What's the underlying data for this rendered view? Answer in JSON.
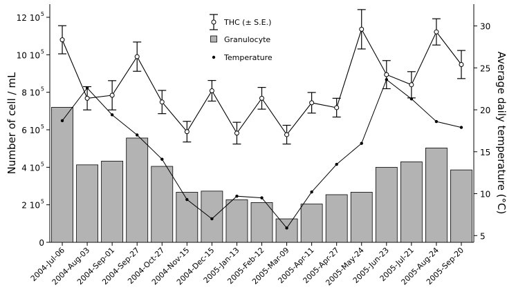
{
  "chart_data": {
    "type": "bar",
    "categories": [
      "2004-Jul-06",
      "2004-Aug-03",
      "2004-Sep-01",
      "2004-Sep-27",
      "2004-Oct-27",
      "2004-Nov-15",
      "2004-Dec-15",
      "2005-Jan-13",
      "2005-Feb-12",
      "2005-Mar-09",
      "2005-Apr-11",
      "2005-Apr-27",
      "2005-May-24",
      "2005-Jun-23",
      "2005-Jul-21",
      "2005-Aug-24",
      "2005-Sep-20"
    ],
    "ylabel": "Number of cell / mL",
    "y2label": "Average daily temperature (°C)",
    "ylim": [
      0,
      1270000
    ],
    "y2lim": [
      4.2,
      32.6
    ],
    "y_ticks": [
      {
        "value": 0,
        "mantissa": "0",
        "exp": ""
      },
      {
        "value": 200000,
        "mantissa": "2 10",
        "exp": "5"
      },
      {
        "value": 400000,
        "mantissa": "4 10",
        "exp": "5"
      },
      {
        "value": 600000,
        "mantissa": "6 10",
        "exp": "5"
      },
      {
        "value": 800000,
        "mantissa": "8 10",
        "exp": "5"
      },
      {
        "value": 1000000,
        "mantissa": "10 10",
        "exp": "5"
      },
      {
        "value": 1200000,
        "mantissa": "12 10",
        "exp": "5"
      }
    ],
    "y2_ticks": [
      5,
      10,
      15,
      20,
      25,
      30
    ],
    "series": [
      {
        "name": "Granulocyte",
        "kind": "bar",
        "color": "#b3b3b3",
        "values": [
          720000,
          413000,
          433000,
          556000,
          405000,
          267000,
          273000,
          227000,
          212000,
          125000,
          204000,
          254000,
          267000,
          400000,
          429000,
          503000,
          386000
        ]
      },
      {
        "name": "THC (± S.E.)",
        "kind": "line-errorbar",
        "color": "#000000",
        "values": [
          1080000,
          768000,
          784000,
          990000,
          748000,
          590000,
          808000,
          582000,
          768000,
          574000,
          744000,
          718000,
          1136000,
          894000,
          840000,
          1122000,
          948000
        ],
        "errors": [
          75000,
          62000,
          78000,
          78000,
          62000,
          55000,
          55000,
          58000,
          58000,
          50000,
          55000,
          50000,
          105000,
          75000,
          70000,
          70000,
          75000
        ]
      },
      {
        "name": "Temperature",
        "kind": "line-axis2",
        "color": "#000000",
        "values": [
          18.7,
          22.6,
          19.4,
          17.0,
          14.1,
          9.3,
          7.0,
          9.7,
          9.5,
          5.9,
          10.2,
          13.5,
          16.0,
          23.6,
          21.3,
          18.6,
          17.9
        ]
      }
    ],
    "legend": [
      {
        "label": "THC (± S.E.)",
        "symbol": "errorbar-circle"
      },
      {
        "label": "Granulocyte",
        "symbol": "square"
      },
      {
        "label": "Temperature",
        "symbol": "dot"
      }
    ],
    "legend_position": "top-center",
    "grid": false
  }
}
